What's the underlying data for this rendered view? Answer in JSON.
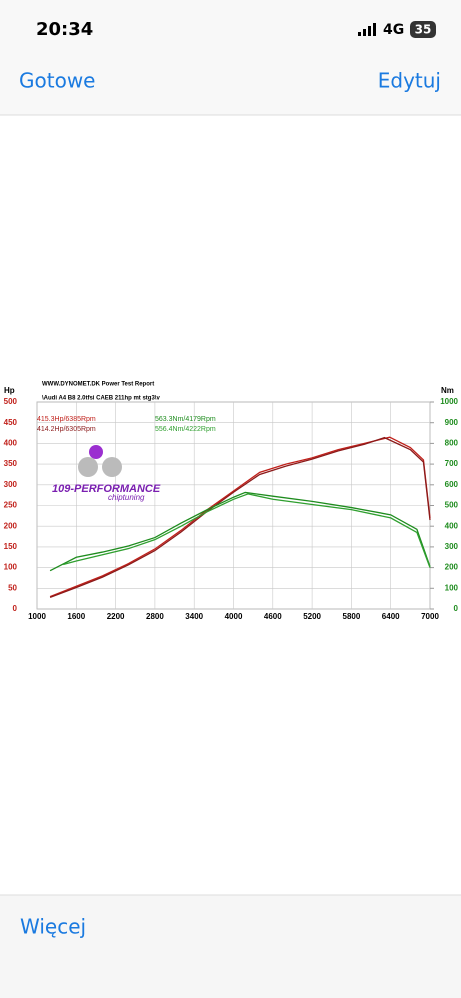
{
  "status_bar": {
    "time": "20:34",
    "network": "4G",
    "battery": "35"
  },
  "nav": {
    "left": "Gotowe",
    "right": "Edytuj"
  },
  "footer": {
    "action": "Więcej"
  },
  "chart_data": {
    "type": "line",
    "header": "WWW.DYNOMET.DK  Power Test Report",
    "subtitle": "\\Audi A4 B8 2.0tfsi CAEB 211hp mt stg3\\v",
    "y_label": "Hp",
    "y2_label": "Nm",
    "logo": "109-PERFORMANCE",
    "logo_sub": "chiptuning",
    "annotations": [
      {
        "text": "415.3Hp/6385Rpm",
        "color": "#c0201a"
      },
      {
        "text": "414.2Hp/6305Rpm",
        "color": "#8b1a1a"
      },
      {
        "text": "563.3Nm/4179Rpm",
        "color": "#1e8c1e"
      },
      {
        "text": "556.4Nm/4222Rpm",
        "color": "#2f9f2f"
      }
    ],
    "xlim": [
      1000,
      7000
    ],
    "xticks": [
      1000,
      1600,
      2200,
      2800,
      3400,
      4000,
      4600,
      5200,
      5800,
      6400,
      7000
    ],
    "ylim": [
      0,
      500
    ],
    "yticks": [
      0,
      50,
      100,
      150,
      200,
      250,
      300,
      350,
      400,
      450,
      500
    ],
    "y2lim": [
      0,
      1000
    ],
    "y2ticks": [
      0,
      100,
      200,
      300,
      400,
      500,
      600,
      700,
      800,
      900,
      1000
    ],
    "y_color": "#c0201a",
    "y2_color": "#1e8c1e",
    "series": [
      {
        "name": "415.3Hp/6385Rpm",
        "color": "#c0201a",
        "x": [
          1200,
          1600,
          2000,
          2400,
          2800,
          3200,
          3600,
          4000,
          4400,
          4800,
          5200,
          5600,
          6000,
          6385,
          6700,
          6900,
          7000
        ],
        "values": [
          30,
          55,
          80,
          110,
          145,
          190,
          240,
          285,
          330,
          350,
          365,
          385,
          400,
          415,
          390,
          360,
          220
        ]
      },
      {
        "name": "414.2Hp/6305Rpm",
        "color": "#8b1a1a",
        "x": [
          1200,
          1600,
          2000,
          2400,
          2800,
          3200,
          3600,
          4000,
          4400,
          4800,
          5200,
          5600,
          6000,
          6305,
          6700,
          6900,
          7000
        ],
        "values": [
          28,
          52,
          77,
          107,
          141,
          186,
          236,
          282,
          325,
          345,
          362,
          382,
          398,
          414,
          385,
          355,
          215
        ]
      },
      {
        "name": "563.3Nm/4179Rpm",
        "color": "#1e8c1e",
        "axis": "y2",
        "x": [
          1200,
          1600,
          2000,
          2400,
          2800,
          3200,
          3600,
          4000,
          4179,
          4600,
          5200,
          5800,
          6400,
          6800,
          7000
        ],
        "values": [
          185,
          250,
          275,
          305,
          345,
          415,
          480,
          540,
          563,
          545,
          520,
          490,
          455,
          385,
          205
        ]
      },
      {
        "name": "556.4Nm/4222Rpm",
        "color": "#2f9f2f",
        "axis": "y2",
        "x": [
          1400,
          1600,
          2000,
          2400,
          2800,
          3200,
          3600,
          4000,
          4222,
          4600,
          5200,
          5800,
          6400,
          6800,
          7000
        ],
        "values": [
          215,
          232,
          262,
          292,
          335,
          400,
          470,
          530,
          556,
          530,
          505,
          480,
          440,
          370,
          200
        ]
      }
    ]
  }
}
